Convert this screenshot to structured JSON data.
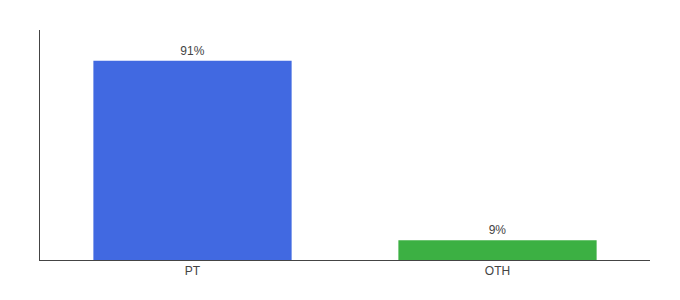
{
  "chart_data": {
    "type": "bar",
    "categories": [
      "PT",
      "OTH"
    ],
    "values": [
      91,
      9
    ],
    "value_labels": [
      "91%",
      "9%"
    ],
    "colors": [
      "#4169e1",
      "#3cb043"
    ],
    "ylim": [
      0,
      105
    ],
    "data_labels": true,
    "tick_labels": "x",
    "grid": false
  }
}
